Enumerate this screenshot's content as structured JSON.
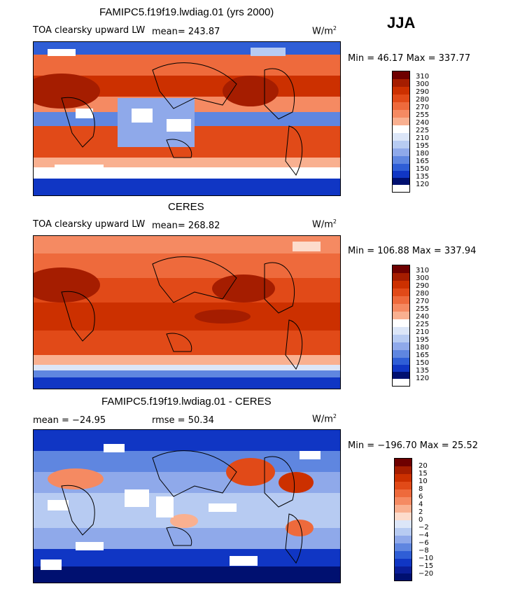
{
  "season": "JJA",
  "units_base": "W/m",
  "units_exp": "2",
  "panels": [
    {
      "title": "FAMIPC5.f19f19.lwdiag.01 (yrs 2000)",
      "subtitle": "TOA clearsky upward LW",
      "mean_label": "mean= 243.87",
      "minmax": "Min =  46.17 Max = 337.77",
      "colorbar": {
        "labels": [
          "310",
          "300",
          "290",
          "280",
          "270",
          "255",
          "240",
          "225",
          "210",
          "195",
          "180",
          "165",
          "150",
          "135",
          "120"
        ]
      }
    },
    {
      "title": "CERES",
      "subtitle": "TOA clearsky upward LW",
      "mean_label": "mean= 268.82",
      "minmax": "Min = 106.88 Max = 337.94",
      "colorbar": {
        "labels": [
          "310",
          "300",
          "290",
          "280",
          "270",
          "255",
          "240",
          "225",
          "210",
          "195",
          "180",
          "165",
          "150",
          "135",
          "120"
        ]
      }
    },
    {
      "title": "FAMIPC5.f19f19.lwdiag.01 - CERES",
      "mean_label": "mean = −24.95",
      "rmse_label": "rmse =   50.34",
      "minmax": "Min = −196.70 Max =  25.52",
      "colorbar": {
        "labels": [
          "20",
          "15",
          "10",
          "8",
          "6",
          "4",
          "2",
          "0",
          "−2",
          "−4",
          "−6",
          "−8",
          "−10",
          "−15",
          "−20"
        ]
      }
    }
  ],
  "colors": {
    "scale": [
      "#6e0000",
      "#a51d00",
      "#cc3000",
      "#e14a18",
      "#ee6a3c",
      "#f58a62",
      "#f9b090",
      "#fddccc",
      "#ffffff",
      "#dce6f8",
      "#b7cbf2",
      "#8fa9ea",
      "#5f86e0",
      "#2f5ed6",
      "#1036c4",
      "#0a1e99",
      "#001070"
    ]
  }
}
